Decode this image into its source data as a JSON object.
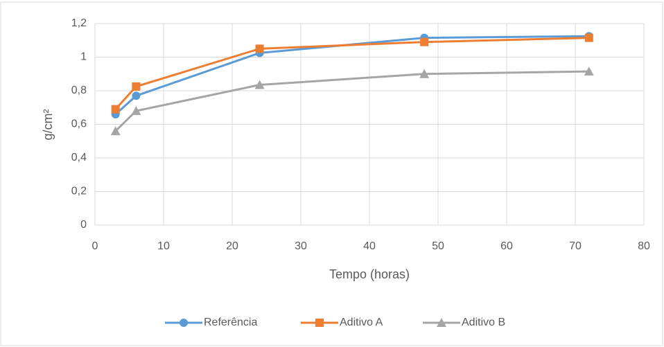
{
  "chart_data": {
    "type": "line",
    "x": [
      3,
      6,
      24,
      48,
      72
    ],
    "series": [
      {
        "name": "Referência",
        "color": "#5b9bd5",
        "marker": "circle",
        "values": [
          0.66,
          0.77,
          1.025,
          1.115,
          1.125
        ]
      },
      {
        "name": "Aditivo A",
        "color": "#ed7d31",
        "marker": "square",
        "values": [
          0.69,
          0.825,
          1.05,
          1.09,
          1.115
        ]
      },
      {
        "name": "Aditivo B",
        "color": "#a5a5a5",
        "marker": "triangle",
        "values": [
          0.56,
          0.68,
          0.835,
          0.9,
          0.915
        ]
      }
    ],
    "xlabel": "Tempo (horas)",
    "ylabel": "g/cm²",
    "xlim": [
      0,
      80
    ],
    "xticks": [
      0,
      10,
      20,
      30,
      40,
      50,
      60,
      70,
      80
    ],
    "ylim": [
      0,
      1.2
    ],
    "yticks": [
      0,
      {
        "value": 0.2,
        "label": "0,2"
      },
      {
        "value": 0.4,
        "label": "0,4"
      },
      {
        "value": 0.6,
        "label": "0,6"
      },
      {
        "value": 0.8,
        "label": "0,8"
      },
      1,
      {
        "value": 1.2,
        "label": "1,2"
      }
    ],
    "grid": true,
    "legend": "bottom"
  }
}
